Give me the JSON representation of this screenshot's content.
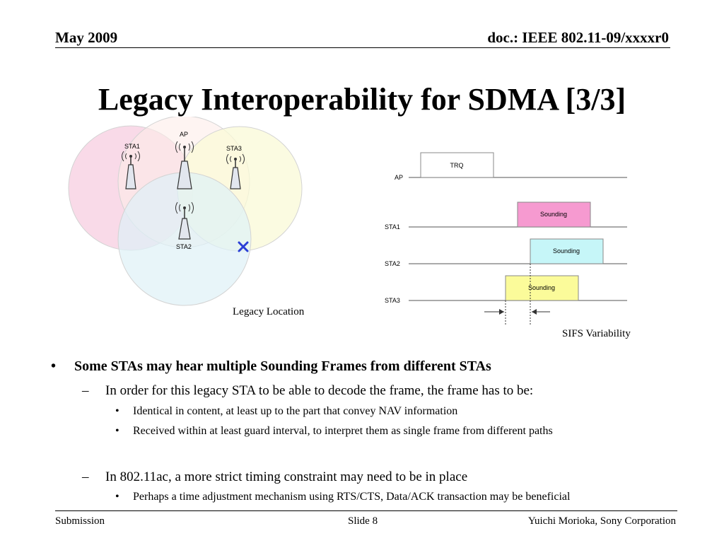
{
  "header": {
    "date": "May 2009",
    "doc_id": "doc.: IEEE 802.11-09/xxxxr0"
  },
  "title": "Legacy Interoperability for SDMA [3/3]",
  "venn": {
    "labels": {
      "sta1": "STA1",
      "ap": "AP",
      "sta3": "STA3",
      "sta2": "STA2"
    },
    "colors": {
      "sta1": "#f9d4e4",
      "ap": "#fbe9e4",
      "sta3": "#fafad0",
      "sta2": "#d8f0f6"
    },
    "caption": "Legacy Location"
  },
  "timing": {
    "rows": {
      "ap": "AP",
      "sta1": "STA1",
      "sta2": "STA2",
      "sta3": "STA3"
    },
    "frames": {
      "trq": "TRQ",
      "sounding1": "Sounding",
      "sounding2": "Sounding",
      "sounding3": "Sounding"
    },
    "colors": {
      "sta1": "#f69ad0",
      "sta2": "#c6f6f8",
      "sta3": "#fbfb9a"
    },
    "caption": "SIFS  Variability"
  },
  "bullets": {
    "b1": "Some STAs may hear multiple Sounding Frames from different STAs",
    "b1_1": "In order for this legacy STA to be able to decode the frame, the frame has to be:",
    "b1_1_1": "Identical in content, at least up to the part that convey NAV information",
    "b1_1_2": "Received within at least guard interval, to interpret them as single frame from different paths",
    "b1_2": "In 802.11ac, a more strict timing constraint may need to be in place",
    "b1_2_1": "Perhaps a time adjustment mechanism using RTS/CTS, Data/ACK transaction  may be beneficial",
    "markers": {
      "l1": "•",
      "l2": "–",
      "l3": "•"
    }
  },
  "footer": {
    "left": "Submission",
    "center": "Slide 8",
    "right": "Yuichi Morioka, Sony Corporation"
  }
}
